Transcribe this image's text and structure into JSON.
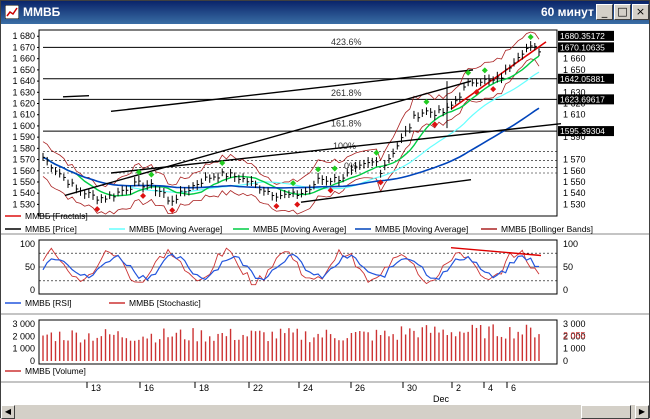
{
  "window": {
    "title": "ММВБ",
    "period": "60 минут",
    "buttons": {
      "minimize": "_",
      "maximize": "□",
      "close": "×"
    }
  },
  "colors": {
    "price": "#000000",
    "ma_fast": "#66ffff",
    "ma_mid": "#00cc44",
    "ma_slow": "#0044bb",
    "bollinger": "#aa2222",
    "fractal_up": "#22cc22",
    "fractal_down": "#dd1111",
    "rsi": "#2255dd",
    "stoch": "#cc3333",
    "volume": "#cc3333",
    "trend": "#000000",
    "fib_trend": "#dd0000"
  },
  "chart_data": [
    {
      "type": "line",
      "panel": "price",
      "y_ticks_left": [
        "1 680",
        "1 670",
        "1 660",
        "1 650",
        "1 640",
        "1 630",
        "1 620",
        "1 610",
        "1 600",
        "1 590",
        "1 580",
        "1 570",
        "1 560",
        "1 550",
        "1 540",
        "1 530"
      ],
      "y_ticks_right": [
        "1 670",
        "1 660",
        "1 650",
        "1 630",
        "1 620",
        "1 610",
        "1 590",
        "1 570",
        "1 560",
        "1 550",
        "1 540",
        "1 530"
      ],
      "ylim": [
        1525,
        1682
      ],
      "price_boxes": [
        "1680.35172",
        "1670.10635",
        "1642.05881",
        "1623.69617",
        "1595.39304"
      ],
      "fib_labels": [
        "423.6%",
        "261.8%",
        "161.8%",
        "100%",
        "0%"
      ],
      "legend": [
        "ММВБ [Fractals]",
        "ММВБ [Price]",
        "ММВБ [Moving Average]",
        "ММВБ [Moving Average]",
        "ММВБ [Moving Average]",
        "ММВБ [Bollinger Bands]"
      ]
    },
    {
      "type": "line",
      "panel": "oscillators",
      "y_ticks_left": [
        "100",
        "50",
        "0"
      ],
      "y_ticks_right": [
        "100",
        "50",
        "0"
      ],
      "ylim": [
        0,
        100
      ],
      "legend": [
        "ММВБ [RSI]",
        "ММВБ [Stochastic]"
      ]
    },
    {
      "type": "bar",
      "panel": "volume",
      "y_ticks_left": [
        "3 000",
        "2 000",
        "1 000",
        "0"
      ],
      "y_ticks_right": [
        "3 000",
        "2 000",
        "1 000",
        "0"
      ],
      "ylim": [
        0,
        3000
      ],
      "last_value": "2 055",
      "legend": [
        "ММВБ [Volume]"
      ]
    }
  ],
  "time_axis": {
    "labels": [
      "13",
      "16",
      "18",
      "22",
      "24",
      "26",
      "30",
      "2",
      "4",
      "6"
    ],
    "month": "Dec"
  }
}
